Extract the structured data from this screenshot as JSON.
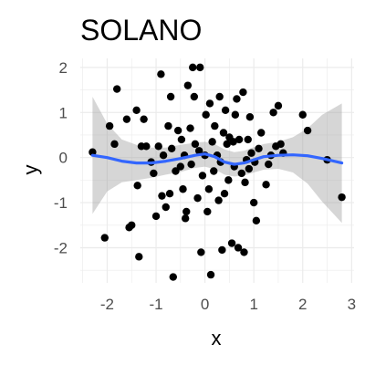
{
  "chart_data": {
    "type": "scatter",
    "title": "SOLANO",
    "xlabel": "x",
    "ylabel": "y",
    "xlim": [
      -2.55,
      3.05
    ],
    "ylim": [
      -2.78,
      2.2
    ],
    "x_ticks": [
      -2,
      -1,
      0,
      1,
      2,
      3
    ],
    "y_ticks": [
      -2,
      -1,
      0,
      1,
      2
    ],
    "grid": true,
    "legend": "none",
    "colors": {
      "points": "#000000",
      "smooth_line": "#3366FF",
      "ribbon": "#999999",
      "grid": "#EBEBEB",
      "tick_text": "#4D4D4D"
    },
    "points": [
      {
        "x": -2.3,
        "y": 0.12
      },
      {
        "x": -2.05,
        "y": -1.78
      },
      {
        "x": -1.95,
        "y": 0.7
      },
      {
        "x": -1.85,
        "y": 0.3
      },
      {
        "x": -1.8,
        "y": 1.52
      },
      {
        "x": -1.6,
        "y": 0.85
      },
      {
        "x": -1.55,
        "y": -1.55
      },
      {
        "x": -1.5,
        "y": -1.5
      },
      {
        "x": -1.4,
        "y": 1.05
      },
      {
        "x": -1.38,
        "y": -0.62
      },
      {
        "x": -1.35,
        "y": -2.2
      },
      {
        "x": -1.3,
        "y": 0.25
      },
      {
        "x": -1.25,
        "y": 0.85
      },
      {
        "x": -1.2,
        "y": 0.25
      },
      {
        "x": -1.1,
        "y": -0.1
      },
      {
        "x": -1.05,
        "y": -0.35
      },
      {
        "x": -1.0,
        "y": -1.3
      },
      {
        "x": -0.95,
        "y": 0.25
      },
      {
        "x": -0.9,
        "y": 1.85
      },
      {
        "x": -0.88,
        "y": -0.85
      },
      {
        "x": -0.85,
        "y": 0.05
      },
      {
        "x": -0.8,
        "y": -1.1
      },
      {
        "x": -0.75,
        "y": 0.7
      },
      {
        "x": -0.72,
        "y": -0.8
      },
      {
        "x": -0.7,
        "y": 1.35
      },
      {
        "x": -0.68,
        "y": 0.2
      },
      {
        "x": -0.65,
        "y": -2.65
      },
      {
        "x": -0.6,
        "y": -0.3
      },
      {
        "x": -0.55,
        "y": 0.6
      },
      {
        "x": -0.5,
        "y": -0.2
      },
      {
        "x": -0.48,
        "y": 0.4
      },
      {
        "x": -0.45,
        "y": -0.7
      },
      {
        "x": -0.42,
        "y": 0.05
      },
      {
        "x": -0.4,
        "y": -1.35
      },
      {
        "x": -0.38,
        "y": -1.2
      },
      {
        "x": -0.35,
        "y": 1.6
      },
      {
        "x": -0.3,
        "y": 0.65
      },
      {
        "x": -0.28,
        "y": -0.15
      },
      {
        "x": -0.25,
        "y": 2.0
      },
      {
        "x": -0.22,
        "y": 1.35
      },
      {
        "x": -0.2,
        "y": 0.3
      },
      {
        "x": -0.15,
        "y": -0.9
      },
      {
        "x": -0.12,
        "y": 0.15
      },
      {
        "x": -0.1,
        "y": 2.0
      },
      {
        "x": -0.08,
        "y": -2.1
      },
      {
        "x": -0.05,
        "y": -0.4
      },
      {
        "x": 0.0,
        "y": 0.05
      },
      {
        "x": 0.02,
        "y": 0.95
      },
      {
        "x": 0.05,
        "y": -1.2
      },
      {
        "x": 0.08,
        "y": -0.7
      },
      {
        "x": 0.1,
        "y": 1.2
      },
      {
        "x": 0.12,
        "y": -2.6
      },
      {
        "x": 0.15,
        "y": 0.35
      },
      {
        "x": 0.18,
        "y": -0.3
      },
      {
        "x": 0.2,
        "y": 0.7
      },
      {
        "x": 0.25,
        "y": 0.05
      },
      {
        "x": 0.28,
        "y": -0.95
      },
      {
        "x": 0.3,
        "y": 1.35
      },
      {
        "x": 0.32,
        "y": -0.1
      },
      {
        "x": 0.35,
        "y": -2.05
      },
      {
        "x": 0.38,
        "y": 0.55
      },
      {
        "x": 0.4,
        "y": -0.8
      },
      {
        "x": 0.42,
        "y": 1.05
      },
      {
        "x": 0.45,
        "y": 0.3
      },
      {
        "x": 0.48,
        "y": -0.5
      },
      {
        "x": 0.5,
        "y": 0.45
      },
      {
        "x": 0.55,
        "y": -1.9
      },
      {
        "x": 0.58,
        "y": 0.35
      },
      {
        "x": 0.6,
        "y": -0.2
      },
      {
        "x": 0.62,
        "y": 0.95
      },
      {
        "x": 0.65,
        "y": 1.3
      },
      {
        "x": 0.68,
        "y": -2.0
      },
      {
        "x": 0.7,
        "y": 0.4
      },
      {
        "x": 0.75,
        "y": -0.35
      },
      {
        "x": 0.78,
        "y": 1.45
      },
      {
        "x": 0.8,
        "y": -2.1
      },
      {
        "x": 0.82,
        "y": -0.55
      },
      {
        "x": 0.85,
        "y": -0.05
      },
      {
        "x": 0.88,
        "y": 0.4
      },
      {
        "x": 0.9,
        "y": -0.25
      },
      {
        "x": 0.92,
        "y": 0.9
      },
      {
        "x": 0.95,
        "y": 0.1
      },
      {
        "x": 1.0,
        "y": -1.0
      },
      {
        "x": 1.02,
        "y": -0.1
      },
      {
        "x": 1.05,
        "y": -1.4
      },
      {
        "x": 1.1,
        "y": 0.2
      },
      {
        "x": 1.15,
        "y": 0.55
      },
      {
        "x": 1.25,
        "y": -0.6
      },
      {
        "x": 1.3,
        "y": -0.15
      },
      {
        "x": 1.35,
        "y": 0.05
      },
      {
        "x": 1.4,
        "y": 1.0
      },
      {
        "x": 1.45,
        "y": 0.25
      },
      {
        "x": 1.5,
        "y": 1.15
      },
      {
        "x": 1.55,
        "y": 0.3
      },
      {
        "x": 1.6,
        "y": 0.1
      },
      {
        "x": 2.0,
        "y": 0.95
      },
      {
        "x": 2.1,
        "y": 0.6
      },
      {
        "x": 2.5,
        "y": -0.05
      },
      {
        "x": 2.8,
        "y": -0.88
      }
    ],
    "smooth_line": [
      {
        "x": -2.3,
        "y": 0.05
      },
      {
        "x": -2.0,
        "y": 0.0
      },
      {
        "x": -1.7,
        "y": -0.08
      },
      {
        "x": -1.4,
        "y": -0.12
      },
      {
        "x": -1.1,
        "y": -0.12
      },
      {
        "x": -0.8,
        "y": -0.08
      },
      {
        "x": -0.5,
        "y": -0.02
      },
      {
        "x": -0.2,
        "y": 0.05
      },
      {
        "x": 0.0,
        "y": 0.08
      },
      {
        "x": 0.2,
        "y": 0.02
      },
      {
        "x": 0.4,
        "y": -0.1
      },
      {
        "x": 0.6,
        "y": -0.15
      },
      {
        "x": 0.8,
        "y": -0.12
      },
      {
        "x": 1.0,
        "y": -0.05
      },
      {
        "x": 1.2,
        "y": 0.02
      },
      {
        "x": 1.5,
        "y": 0.05
      },
      {
        "x": 1.8,
        "y": 0.06
      },
      {
        "x": 2.1,
        "y": 0.04
      },
      {
        "x": 2.4,
        "y": -0.02
      },
      {
        "x": 2.8,
        "y": -0.12
      }
    ],
    "ribbon_upper": [
      {
        "x": -2.3,
        "y": 1.35
      },
      {
        "x": -2.0,
        "y": 0.75
      },
      {
        "x": -1.7,
        "y": 0.4
      },
      {
        "x": -1.4,
        "y": 0.28
      },
      {
        "x": -1.1,
        "y": 0.22
      },
      {
        "x": -0.8,
        "y": 0.22
      },
      {
        "x": -0.5,
        "y": 0.28
      },
      {
        "x": -0.2,
        "y": 0.33
      },
      {
        "x": 0.0,
        "y": 0.35
      },
      {
        "x": 0.2,
        "y": 0.3
      },
      {
        "x": 0.4,
        "y": 0.18
      },
      {
        "x": 0.6,
        "y": 0.12
      },
      {
        "x": 0.8,
        "y": 0.15
      },
      {
        "x": 1.0,
        "y": 0.23
      },
      {
        "x": 1.2,
        "y": 0.3
      },
      {
        "x": 1.5,
        "y": 0.35
      },
      {
        "x": 1.8,
        "y": 0.45
      },
      {
        "x": 2.1,
        "y": 0.65
      },
      {
        "x": 2.4,
        "y": 0.95
      },
      {
        "x": 2.8,
        "y": 1.2
      }
    ],
    "ribbon_lower": [
      {
        "x": -2.3,
        "y": -1.25
      },
      {
        "x": -2.0,
        "y": -0.75
      },
      {
        "x": -1.7,
        "y": -0.55
      },
      {
        "x": -1.4,
        "y": -0.5
      },
      {
        "x": -1.1,
        "y": -0.45
      },
      {
        "x": -0.8,
        "y": -0.38
      },
      {
        "x": -0.5,
        "y": -0.32
      },
      {
        "x": -0.2,
        "y": -0.23
      },
      {
        "x": 0.0,
        "y": -0.2
      },
      {
        "x": 0.2,
        "y": -0.26
      },
      {
        "x": 0.4,
        "y": -0.38
      },
      {
        "x": 0.6,
        "y": -0.42
      },
      {
        "x": 0.8,
        "y": -0.4
      },
      {
        "x": 1.0,
        "y": -0.33
      },
      {
        "x": 1.2,
        "y": -0.27
      },
      {
        "x": 1.5,
        "y": -0.25
      },
      {
        "x": 1.8,
        "y": -0.33
      },
      {
        "x": 2.1,
        "y": -0.58
      },
      {
        "x": 2.4,
        "y": -0.98
      },
      {
        "x": 2.8,
        "y": -1.45
      }
    ]
  }
}
